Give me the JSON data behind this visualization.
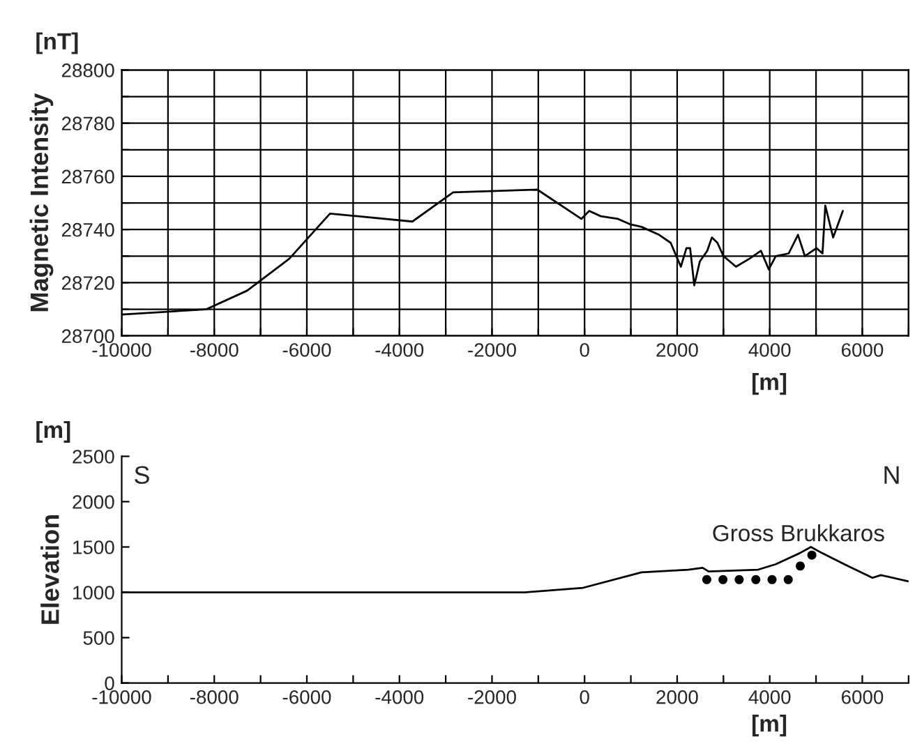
{
  "chart_data": [
    {
      "type": "line",
      "ylabel": "Magnetic Intensity",
      "xlabel": "[m]",
      "annotations": [
        "[nT]"
      ],
      "grid": true,
      "series": [
        {
          "color": "#000000",
          "x": [
            -10000,
            -8170,
            -7290,
            -6380,
            -5500,
            -3720,
            -2840,
            -1020,
            -70,
            100,
            350,
            720,
            980,
            1230,
            1610,
            1860,
            2080,
            2200,
            2280,
            2370,
            2490,
            2650,
            2750,
            2870,
            3000,
            3270,
            3560,
            3810,
            3980,
            4130,
            4410,
            4610,
            4760,
            5010,
            5140,
            5200,
            5370,
            5580
          ],
          "values": [
            28708,
            28710,
            28717,
            28729,
            28746,
            28743,
            28754,
            28755,
            28744,
            28747,
            28745,
            28744,
            28742,
            28741,
            28738,
            28735,
            28726,
            28733,
            28733,
            28719,
            28728,
            28732,
            28737,
            28735,
            28730,
            28726,
            28729,
            28732,
            28725,
            28730,
            28731,
            28738,
            28730,
            28733,
            28731,
            28749,
            28737,
            28747
          ]
        }
      ],
      "xlim": [
        -10000,
        7000
      ],
      "ylim": [
        28700,
        28800
      ],
      "xticks": [
        -10000,
        {
          "value": -9000,
          "label": null
        },
        -8000,
        {
          "value": -7000,
          "label": null
        },
        -6000,
        {
          "value": -5000,
          "label": null
        },
        -4000,
        {
          "value": -3000,
          "label": null
        },
        -2000,
        {
          "value": -1000,
          "label": null
        },
        0,
        {
          "value": 1000,
          "label": null
        },
        2000,
        {
          "value": 3000,
          "label": null
        },
        4000,
        {
          "value": 5000,
          "label": null
        },
        6000,
        {
          "value": 7000,
          "label": null
        }
      ],
      "yticks": [
        28700,
        {
          "value": 28710,
          "label": null
        },
        28720,
        {
          "value": 28730,
          "label": null
        },
        28740,
        {
          "value": 28750,
          "label": null
        },
        28760,
        {
          "value": 28770,
          "label": null
        },
        28780,
        {
          "value": 28790,
          "label": null
        },
        28800
      ]
    },
    {
      "type": "line",
      "ylabel": "Elevation",
      "xlabel": "[m]",
      "annotations": [
        "[m]",
        "S",
        "N",
        "Gross Brukkaros"
      ],
      "grid": false,
      "series": [
        {
          "color": "#000000",
          "x": [
            -10000,
            -6340,
            -1290,
            -30,
            1230,
            2240,
            2550,
            2680,
            3750,
            4130,
            4640,
            4890,
            5140,
            5650,
            6220,
            6400,
            7000
          ],
          "values": [
            1000,
            1000,
            1000,
            1050,
            1220,
            1250,
            1270,
            1230,
            1250,
            1310,
            1430,
            1500,
            1430,
            1300,
            1160,
            1190,
            1120
          ]
        },
        {
          "type": "scatter",
          "marker": "circle",
          "color": "#000000",
          "x": [
            2640,
            2990,
            3340,
            3700,
            4050,
            4400,
            4660,
            4910
          ],
          "values": [
            1140,
            1140,
            1140,
            1140,
            1140,
            1140,
            1290,
            1410
          ]
        }
      ],
      "xlim": [
        -10000,
        7000
      ],
      "ylim": [
        0,
        2500
      ],
      "xticks": [
        -10000,
        {
          "value": -9000,
          "label": null
        },
        -8000,
        {
          "value": -7000,
          "label": null
        },
        -6000,
        {
          "value": -5000,
          "label": null
        },
        -4000,
        {
          "value": -3000,
          "label": null
        },
        -2000,
        {
          "value": -1000,
          "label": null
        },
        0,
        {
          "value": 1000,
          "label": null
        },
        2000,
        {
          "value": 3000,
          "label": null
        },
        4000,
        {
          "value": 5000,
          "label": null
        },
        6000,
        {
          "value": 7000,
          "label": null
        }
      ],
      "yticks": [
        0,
        500,
        1000,
        1500,
        2000,
        2500
      ]
    }
  ]
}
